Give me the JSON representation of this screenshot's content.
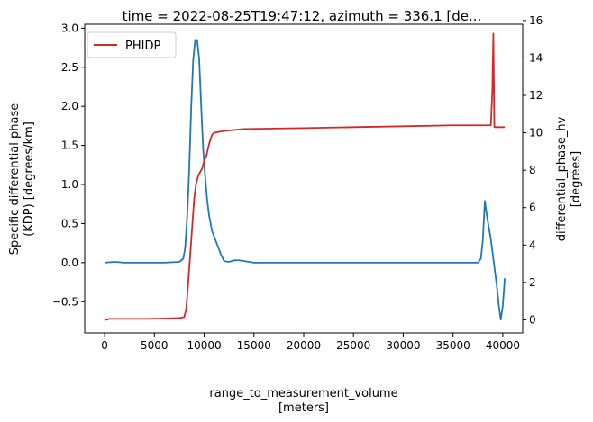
{
  "chart_data": {
    "type": "line",
    "title": "time = 2022-08-25T19:47:12, azimuth = 336.1 [de...",
    "xlabel": "range_to_measurement_volume",
    "xlabel_units": "[meters]",
    "ylabel_left": "Specific differential phase",
    "ylabel_left_2": "(KDP) [degrees/km]",
    "ylabel_right": "differential_phase_hv",
    "ylabel_right_2": "[degrees]",
    "xlim": [
      -2000,
      42000
    ],
    "ylim_left": [
      -0.9,
      3.05
    ],
    "ylim_right": [
      -0.7,
      15.8
    ],
    "x_ticks": [
      0,
      5000,
      10000,
      15000,
      20000,
      25000,
      30000,
      35000,
      40000
    ],
    "x_tick_labels": [
      "0",
      "5000",
      "10000",
      "15000",
      "20000",
      "25000",
      "30000",
      "35000",
      "40000"
    ],
    "y_left_ticks": [
      -0.5,
      0.0,
      0.5,
      1.0,
      1.5,
      2.0,
      2.5,
      3.0
    ],
    "y_left_tick_labels": [
      "−0.5",
      "0.0",
      "0.5",
      "1.0",
      "1.5",
      "2.0",
      "2.5",
      "3.0"
    ],
    "y_right_ticks": [
      0,
      2,
      4,
      6,
      8,
      10,
      12,
      14,
      16
    ],
    "y_right_tick_labels": [
      "0",
      "2",
      "4",
      "6",
      "8",
      "10",
      "12",
      "14",
      "16"
    ],
    "grid": false,
    "legend": {
      "placement": "top-left",
      "entries": [
        {
          "name": "PHIDP",
          "color": "#d62728"
        }
      ]
    },
    "series": [
      {
        "axis": "left",
        "color": "#1f77b4",
        "points": [
          [
            0,
            0.0
          ],
          [
            1000,
            0.01
          ],
          [
            2000,
            0.0
          ],
          [
            4000,
            0.0
          ],
          [
            6000,
            0.0
          ],
          [
            7500,
            0.01
          ],
          [
            7900,
            0.05
          ],
          [
            8100,
            0.2
          ],
          [
            8300,
            0.6
          ],
          [
            8500,
            1.2
          ],
          [
            8700,
            2.0
          ],
          [
            8900,
            2.6
          ],
          [
            9100,
            2.85
          ],
          [
            9300,
            2.85
          ],
          [
            9500,
            2.6
          ],
          [
            9700,
            2.0
          ],
          [
            9900,
            1.45
          ],
          [
            10100,
            1.1
          ],
          [
            10300,
            0.8
          ],
          [
            10500,
            0.6
          ],
          [
            10800,
            0.4
          ],
          [
            11100,
            0.3
          ],
          [
            11400,
            0.2
          ],
          [
            11700,
            0.1
          ],
          [
            12000,
            0.02
          ],
          [
            12500,
            0.01
          ],
          [
            13000,
            0.03
          ],
          [
            13500,
            0.03
          ],
          [
            14000,
            0.02
          ],
          [
            15000,
            0.0
          ],
          [
            20000,
            0.0
          ],
          [
            25000,
            0.0
          ],
          [
            30000,
            0.0
          ],
          [
            35000,
            0.0
          ],
          [
            37500,
            0.0
          ],
          [
            37800,
            0.05
          ],
          [
            38000,
            0.3
          ],
          [
            38200,
            0.79
          ],
          [
            38400,
            0.6
          ],
          [
            38600,
            0.45
          ],
          [
            38800,
            0.3
          ],
          [
            39000,
            0.1
          ],
          [
            39200,
            -0.1
          ],
          [
            39400,
            -0.3
          ],
          [
            39600,
            -0.55
          ],
          [
            39800,
            -0.73
          ],
          [
            40000,
            -0.55
          ],
          [
            40200,
            -0.2
          ]
        ]
      },
      {
        "axis": "right",
        "name": "PHIDP",
        "color": "#d62728",
        "points": [
          [
            0,
            0.1
          ],
          [
            100,
            0.0
          ],
          [
            500,
            0.05
          ],
          [
            2000,
            0.05
          ],
          [
            4000,
            0.05
          ],
          [
            6000,
            0.07
          ],
          [
            7500,
            0.1
          ],
          [
            8000,
            0.15
          ],
          [
            8200,
            0.6
          ],
          [
            8400,
            2.0
          ],
          [
            8600,
            3.5
          ],
          [
            8800,
            5.0
          ],
          [
            9000,
            6.5
          ],
          [
            9200,
            7.3
          ],
          [
            9400,
            7.7
          ],
          [
            9600,
            7.9
          ],
          [
            9800,
            8.1
          ],
          [
            10000,
            8.5
          ],
          [
            10200,
            8.7
          ],
          [
            10400,
            9.2
          ],
          [
            10600,
            9.6
          ],
          [
            10800,
            9.9
          ],
          [
            11000,
            10.0
          ],
          [
            11500,
            10.05
          ],
          [
            12000,
            10.1
          ],
          [
            13000,
            10.15
          ],
          [
            14000,
            10.2
          ],
          [
            20000,
            10.25
          ],
          [
            25000,
            10.3
          ],
          [
            30000,
            10.35
          ],
          [
            35000,
            10.4
          ],
          [
            38800,
            10.4
          ],
          [
            38950,
            12.2
          ],
          [
            39050,
            15.3
          ],
          [
            39150,
            10.3
          ],
          [
            39300,
            10.3
          ],
          [
            39800,
            10.3
          ],
          [
            40200,
            10.3
          ]
        ]
      }
    ]
  }
}
